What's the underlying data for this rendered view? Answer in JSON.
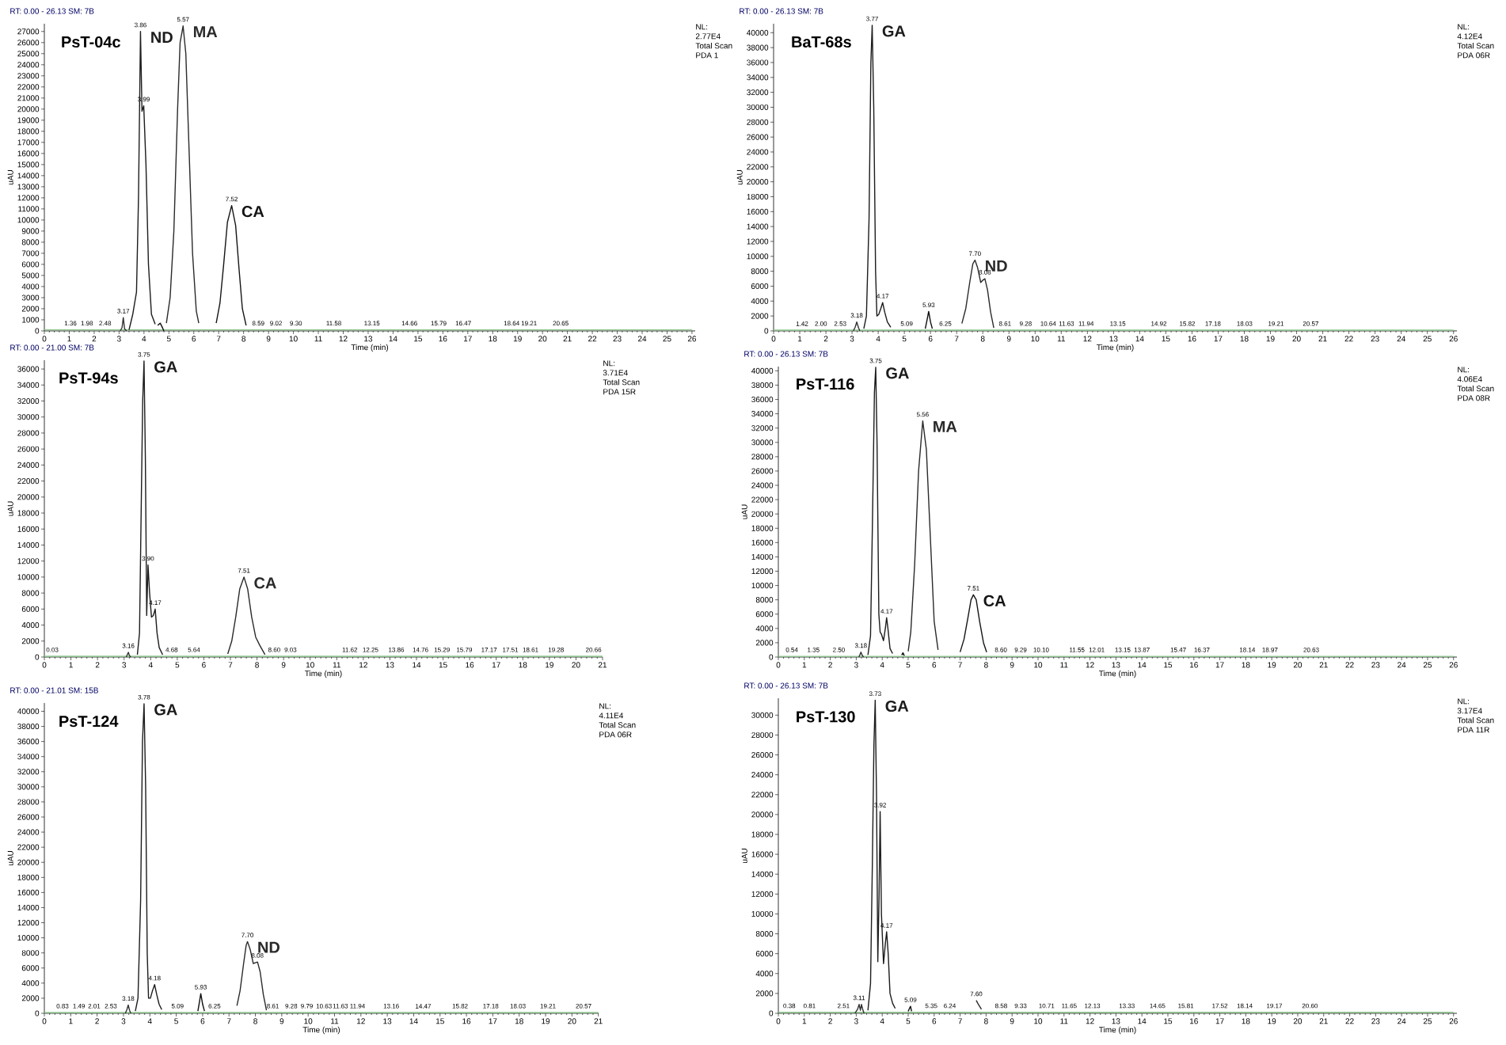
{
  "chart_data": [
    {
      "type": "line",
      "title": "PsT-04c",
      "subtitle": "RT: 0.00 - 26.13 SM: 7B",
      "xlabel": "Time (min)",
      "ylabel": "uAU",
      "xlim": [
        0,
        26.13
      ],
      "ylim": [
        0,
        27700
      ],
      "xticks": [
        0,
        1,
        2,
        3,
        4,
        5,
        6,
        7,
        8,
        9,
        10,
        11,
        12,
        13,
        14,
        15,
        16,
        17,
        18,
        19,
        20,
        21,
        22,
        23,
        24,
        25,
        26
      ],
      "yticks": [
        0,
        1000,
        2000,
        3000,
        4000,
        5000,
        6000,
        7000,
        8000,
        9000,
        10000,
        11000,
        12000,
        13000,
        14000,
        15000,
        16000,
        17000,
        18000,
        19000,
        20000,
        21000,
        22000,
        23000,
        24000,
        25000,
        26000,
        27000
      ],
      "series": [
        {
          "color": "#8cc78c",
          "x": [
            0,
            26
          ],
          "values": [
            100,
            100
          ]
        },
        {
          "color": "#333333",
          "x": [
            3.05,
            3.12,
            3.17,
            3.22,
            3.3
          ],
          "values": [
            0,
            300,
            1200,
            200,
            0
          ]
        },
        {
          "name": "ND",
          "color": "#1c1c1c",
          "x": [
            3.4,
            3.55,
            3.7,
            3.78,
            3.86,
            3.92,
            3.99,
            4.08,
            4.18,
            4.3,
            4.45
          ],
          "values": [
            100,
            1500,
            3500,
            12000,
            27000,
            19800,
            20300,
            15000,
            6000,
            1500,
            600
          ]
        },
        {
          "color": "#0e0e0e",
          "x": [
            4.55,
            4.65,
            4.72,
            4.8
          ],
          "values": [
            500,
            700,
            400,
            0
          ]
        },
        {
          "name": "MA",
          "color": "#2a2a2a",
          "x": [
            4.9,
            5.05,
            5.2,
            5.35,
            5.45,
            5.57,
            5.68,
            5.8,
            5.95,
            6.1,
            6.2
          ],
          "values": [
            700,
            3000,
            9000,
            20000,
            26000,
            27500,
            25000,
            17000,
            7000,
            1800,
            700
          ]
        },
        {
          "name": "CA",
          "color": "#151515",
          "x": [
            6.9,
            7.05,
            7.2,
            7.35,
            7.52,
            7.68,
            7.82,
            7.95,
            8.1
          ],
          "values": [
            700,
            2500,
            6000,
            9800,
            11300,
            9500,
            5500,
            2000,
            500
          ]
        }
      ],
      "annotations": [
        "NL:",
        "2.77E4",
        "Total Scan",
        "PDA 1",
        {
          "text": "1.36",
          "x": 1.05,
          "y": 100
        },
        {
          "text": "1.98",
          "x": 1.71,
          "y": 100
        },
        {
          "text": "2.48",
          "x": 2.44,
          "y": 100
        },
        {
          "text": "3.17",
          "x": 3.17,
          "y": 1200
        },
        {
          "text": "3.86",
          "x": 3.86,
          "y": 27000
        },
        {
          "text": "3.99",
          "x": 3.99,
          "y": 20300
        },
        {
          "text": "5.57",
          "x": 5.57,
          "y": 27500
        },
        {
          "text": "7.52",
          "x": 7.52,
          "y": 11300
        },
        {
          "text": "8.59",
          "x": 8.59,
          "y": 100
        },
        {
          "text": "9.02",
          "x": 9.3,
          "y": 100
        },
        {
          "text": "9.30",
          "x": 10.1,
          "y": 100
        },
        {
          "text": "11.58",
          "x": 11.62,
          "y": 100
        },
        {
          "text": "13.15",
          "x": 13.15,
          "y": 100
        },
        {
          "text": "14.66",
          "x": 14.66,
          "y": 100
        },
        {
          "text": "15.79",
          "x": 15.83,
          "y": 100
        },
        {
          "text": "16.47",
          "x": 16.82,
          "y": 100
        },
        {
          "text": "18.64",
          "x": 18.76,
          "y": 100
        },
        {
          "text": "19.21",
          "x": 19.46,
          "y": 100
        },
        {
          "text": "20.65",
          "x": 20.73,
          "y": 100
        }
      ]
    },
    {
      "type": "line",
      "title": "BaT-68s",
      "subtitle": "RT: 0.00 - 26.13 SM: 7B",
      "xlabel": "Time (min)",
      "ylabel": "uAU",
      "xlim": [
        0,
        26.13
      ],
      "ylim": [
        0,
        41200
      ],
      "xticks": [
        0,
        1,
        2,
        3,
        4,
        5,
        6,
        7,
        8,
        9,
        10,
        11,
        12,
        13,
        14,
        15,
        16,
        17,
        18,
        19,
        20,
        21,
        22,
        23,
        24,
        25,
        26
      ],
      "yticks": [
        0,
        2000,
        4000,
        6000,
        8000,
        10000,
        12000,
        14000,
        16000,
        18000,
        20000,
        22000,
        24000,
        26000,
        28000,
        30000,
        32000,
        34000,
        36000,
        38000,
        40000
      ],
      "series": [
        {
          "color": "#8cc78c",
          "x": [
            0,
            26
          ],
          "values": [
            100,
            100
          ]
        },
        {
          "color": "#333333",
          "x": [
            3.05,
            3.12,
            3.18,
            3.25,
            3.3
          ],
          "values": [
            0,
            500,
            1200,
            400,
            0
          ]
        },
        {
          "name": "GA",
          "color": "#1c1c1c",
          "x": [
            3.45,
            3.55,
            3.65,
            3.72,
            3.77,
            3.83,
            3.9,
            3.95,
            4.02,
            4.1,
            4.17,
            4.25,
            4.35,
            4.48
          ],
          "values": [
            300,
            2000,
            15000,
            36000,
            41000,
            30000,
            8000,
            2000,
            2200,
            3000,
            3800,
            2500,
            1200,
            500
          ]
        },
        {
          "color": "#0e0e0e",
          "x": [
            5.8,
            5.87,
            5.93,
            6.0,
            6.07
          ],
          "values": [
            300,
            1500,
            2600,
            1200,
            300
          ]
        },
        {
          "name": "ND",
          "color": "#2a2a2a",
          "x": [
            7.2,
            7.35,
            7.5,
            7.62,
            7.7,
            7.8,
            7.92,
            8.0,
            8.08,
            8.18,
            8.3,
            8.42
          ],
          "values": [
            1000,
            3000,
            6500,
            9000,
            9500,
            8500,
            6500,
            6800,
            7000,
            5500,
            2500,
            400
          ]
        }
      ],
      "annotations": [
        "NL:",
        "4.12E4",
        "Total Scan",
        "PDA 06R",
        {
          "text": "1.42",
          "x": 1.09,
          "y": 100
        },
        {
          "text": "2.00",
          "x": 1.81,
          "y": 100
        },
        {
          "text": "2.53",
          "x": 2.55,
          "y": 100
        },
        {
          "text": "3.18",
          "x": 3.18,
          "y": 1200
        },
        {
          "text": "3.77",
          "x": 3.77,
          "y": 41000
        },
        {
          "text": "4.17",
          "x": 4.17,
          "y": 3800
        },
        {
          "text": "5.09",
          "x": 5.09,
          "y": 100
        },
        {
          "text": "5.93",
          "x": 5.93,
          "y": 2600
        },
        {
          "text": "6.25",
          "x": 6.57,
          "y": 100
        },
        {
          "text": "7.70",
          "x": 7.7,
          "y": 9500
        },
        {
          "text": "8.08",
          "x": 8.08,
          "y": 7000
        },
        {
          "text": "8.61",
          "x": 8.85,
          "y": 100
        },
        {
          "text": "9.28",
          "x": 9.64,
          "y": 100
        },
        {
          "text": "10.64",
          "x": 10.5,
          "y": 100
        },
        {
          "text": "11.63",
          "x": 11.2,
          "y": 100
        },
        {
          "text": "11.94",
          "x": 11.95,
          "y": 100
        },
        {
          "text": "13.15",
          "x": 13.16,
          "y": 100
        },
        {
          "text": "14.92",
          "x": 14.73,
          "y": 100
        },
        {
          "text": "15.82",
          "x": 15.82,
          "y": 100
        },
        {
          "text": "17.18",
          "x": 16.8,
          "y": 100
        },
        {
          "text": "18.03",
          "x": 18.01,
          "y": 100
        },
        {
          "text": "19.21",
          "x": 19.21,
          "y": 100
        },
        {
          "text": "20.57",
          "x": 20.54,
          "y": 100
        }
      ]
    },
    {
      "type": "line",
      "title": "PsT-94s",
      "subtitle": "RT: 0.00 - 21.00 SM: 7B",
      "xlabel": "Time (min)",
      "ylabel": "uAU",
      "xlim": [
        0,
        21
      ],
      "ylim": [
        0,
        37100
      ],
      "xticks": [
        0,
        1,
        2,
        3,
        4,
        5,
        6,
        7,
        8,
        9,
        10,
        11,
        12,
        13,
        14,
        15,
        16,
        17,
        18,
        19,
        20,
        21
      ],
      "yticks": [
        0,
        2000,
        4000,
        6000,
        8000,
        10000,
        12000,
        14000,
        16000,
        18000,
        20000,
        22000,
        24000,
        26000,
        28000,
        30000,
        32000,
        34000,
        36000
      ],
      "series": [
        {
          "color": "#8cc78c",
          "x": [
            0,
            21
          ],
          "values": [
            100,
            100
          ]
        },
        {
          "color": "#333333",
          "x": [
            3.08,
            3.12,
            3.16,
            3.2,
            3.25
          ],
          "values": [
            0,
            300,
            600,
            200,
            0
          ]
        },
        {
          "name": "GA",
          "color": "#1c1c1c",
          "x": [
            3.5,
            3.58,
            3.65,
            3.7,
            3.75,
            3.8,
            3.85,
            3.9,
            3.96,
            4.03,
            4.1,
            4.17,
            4.24,
            4.32,
            4.45
          ],
          "values": [
            300,
            3000,
            20000,
            32000,
            37000,
            25000,
            5200,
            11500,
            8000,
            5000,
            5200,
            6000,
            3000,
            1200,
            300
          ]
        },
        {
          "name": "CA",
          "color": "#2a2a2a",
          "x": [
            6.9,
            7.05,
            7.2,
            7.35,
            7.51,
            7.65,
            7.8,
            7.95,
            8.1,
            8.3
          ],
          "values": [
            400,
            2000,
            5000,
            8500,
            10000,
            8500,
            5000,
            2500,
            1500,
            300
          ]
        }
      ],
      "annotations": [
        "NL:",
        "3.71E4",
        "Total Scan",
        "PDA 15R",
        {
          "text": "0.03",
          "x": 0.3,
          "y": 100
        },
        {
          "text": "3.16",
          "x": 3.16,
          "y": 600
        },
        {
          "text": "3.75",
          "x": 3.75,
          "y": 37000
        },
        {
          "text": "3.90",
          "x": 3.9,
          "y": 11500
        },
        {
          "text": "4.17",
          "x": 4.17,
          "y": 6000
        },
        {
          "text": "4.68",
          "x": 4.79,
          "y": 100
        },
        {
          "text": "5.64",
          "x": 5.63,
          "y": 100
        },
        {
          "text": "7.51",
          "x": 7.51,
          "y": 10000
        },
        {
          "text": "8.60",
          "x": 8.65,
          "y": 100
        },
        {
          "text": "9.03",
          "x": 9.26,
          "y": 100
        },
        {
          "text": "11.62",
          "x": 11.49,
          "y": 100
        },
        {
          "text": "12.25",
          "x": 12.27,
          "y": 100
        },
        {
          "text": "13.86",
          "x": 13.24,
          "y": 100
        },
        {
          "text": "14.76",
          "x": 14.15,
          "y": 100
        },
        {
          "text": "15.29",
          "x": 14.96,
          "y": 100
        },
        {
          "text": "15.79",
          "x": 15.8,
          "y": 100
        },
        {
          "text": "17.17",
          "x": 16.73,
          "y": 100
        },
        {
          "text": "17.51",
          "x": 17.53,
          "y": 100
        },
        {
          "text": "18.61",
          "x": 18.29,
          "y": 100
        },
        {
          "text": "19.28",
          "x": 19.25,
          "y": 100
        },
        {
          "text": "20.66",
          "x": 20.66,
          "y": 100
        }
      ]
    },
    {
      "type": "line",
      "title": "PsT-116",
      "subtitle": "RT: 0.00 - 26.13 SM: 7B",
      "xlabel": "Time (min)",
      "ylabel": "uAU",
      "xlim": [
        0,
        26.13
      ],
      "ylim": [
        0,
        40600
      ],
      "xticks": [
        0,
        1,
        2,
        3,
        4,
        5,
        6,
        7,
        8,
        9,
        10,
        11,
        12,
        13,
        14,
        15,
        16,
        17,
        18,
        19,
        20,
        21,
        22,
        23,
        24,
        25,
        26
      ],
      "yticks": [
        0,
        2000,
        4000,
        6000,
        8000,
        10000,
        12000,
        14000,
        16000,
        18000,
        20000,
        22000,
        24000,
        26000,
        28000,
        30000,
        32000,
        34000,
        36000,
        38000,
        40000
      ],
      "series": [
        {
          "color": "#8cc78c",
          "x": [
            0,
            26
          ],
          "values": [
            100,
            100
          ]
        },
        {
          "color": "#333333",
          "x": [
            3.1,
            3.15,
            3.18,
            3.22,
            3.28
          ],
          "values": [
            0,
            400,
            700,
            300,
            0
          ]
        },
        {
          "name": "GA",
          "color": "#1c1c1c",
          "x": [
            3.45,
            3.55,
            3.62,
            3.7,
            3.75,
            3.8,
            3.87,
            3.92,
            3.97,
            4.05,
            4.12,
            4.17,
            4.22,
            4.3,
            4.4
          ],
          "values": [
            300,
            3000,
            18000,
            37000,
            40500,
            30000,
            6000,
            3500,
            3200,
            2300,
            4000,
            5500,
            4000,
            1200,
            500
          ]
        },
        {
          "color": "#0e0e0e",
          "x": [
            4.75,
            4.8,
            4.85
          ],
          "values": [
            300,
            600,
            200
          ]
        },
        {
          "name": "MA",
          "color": "#2a2a2a",
          "x": [
            5.0,
            5.1,
            5.25,
            5.4,
            5.56,
            5.7,
            5.85,
            6.0,
            6.15
          ],
          "values": [
            800,
            3500,
            13000,
            26000,
            33000,
            29000,
            17000,
            5000,
            1000
          ]
        },
        {
          "name": "CA",
          "color": "#151515",
          "x": [
            7.0,
            7.15,
            7.3,
            7.42,
            7.51,
            7.62,
            7.75,
            7.9,
            8.02
          ],
          "values": [
            700,
            2500,
            5500,
            8000,
            8700,
            8000,
            5000,
            2000,
            700
          ]
        }
      ],
      "annotations": [
        "NL:",
        "4.06E4",
        "Total Scan",
        "PDA 08R",
        {
          "text": "0.54",
          "x": 0.52,
          "y": 100
        },
        {
          "text": "1.35",
          "x": 1.35,
          "y": 100
        },
        {
          "text": "2.50",
          "x": 2.33,
          "y": 100
        },
        {
          "text": "3.18",
          "x": 3.18,
          "y": 700
        },
        {
          "text": "3.75",
          "x": 3.75,
          "y": 40500
        },
        {
          "text": "4.17",
          "x": 4.17,
          "y": 5500
        },
        {
          "text": "5.56",
          "x": 5.56,
          "y": 33000
        },
        {
          "text": "7.51",
          "x": 7.51,
          "y": 8700
        },
        {
          "text": "8.60",
          "x": 8.57,
          "y": 100
        },
        {
          "text": "9.29",
          "x": 9.33,
          "y": 100
        },
        {
          "text": "10.10",
          "x": 10.12,
          "y": 100
        },
        {
          "text": "11.55",
          "x": 11.5,
          "y": 100
        },
        {
          "text": "12.01",
          "x": 12.26,
          "y": 100
        },
        {
          "text": "13.15",
          "x": 13.26,
          "y": 100
        },
        {
          "text": "13.87",
          "x": 14.0,
          "y": 100
        },
        {
          "text": "15.47",
          "x": 15.4,
          "y": 100
        },
        {
          "text": "16.37",
          "x": 16.31,
          "y": 100
        },
        {
          "text": "18.14",
          "x": 18.06,
          "y": 100
        },
        {
          "text": "18.97",
          "x": 18.93,
          "y": 100
        },
        {
          "text": "20.63",
          "x": 20.52,
          "y": 100
        }
      ]
    },
    {
      "type": "line",
      "title": "PsT-124",
      "subtitle": "RT: 0.00 - 21.01 SM: 15B",
      "xlabel": "Time (min)",
      "ylabel": "uAU",
      "xlim": [
        0,
        21.01
      ],
      "ylim": [
        0,
        41100
      ],
      "xticks": [
        0,
        1,
        2,
        3,
        4,
        5,
        6,
        7,
        8,
        9,
        10,
        11,
        12,
        13,
        14,
        15,
        16,
        17,
        18,
        19,
        20,
        21
      ],
      "yticks": [
        0,
        2000,
        4000,
        6000,
        8000,
        10000,
        12000,
        14000,
        16000,
        18000,
        20000,
        22000,
        24000,
        26000,
        28000,
        30000,
        32000,
        34000,
        36000,
        38000,
        40000
      ],
      "series": [
        {
          "color": "#8cc78c",
          "x": [
            0,
            21
          ],
          "values": [
            100,
            100
          ]
        },
        {
          "color": "#333333",
          "x": [
            3.07,
            3.13,
            3.18,
            3.23,
            3.28
          ],
          "values": [
            0,
            500,
            1100,
            400,
            0
          ]
        },
        {
          "name": "GA",
          "color": "#1c1c1c",
          "x": [
            3.45,
            3.55,
            3.65,
            3.72,
            3.78,
            3.84,
            3.9,
            3.95,
            4.02,
            4.1,
            4.18,
            4.26,
            4.35,
            4.45
          ],
          "values": [
            300,
            2000,
            15000,
            36000,
            41000,
            30000,
            8000,
            2000,
            2000,
            3000,
            3800,
            2500,
            1200,
            500
          ]
        },
        {
          "color": "#0e0e0e",
          "x": [
            5.82,
            5.88,
            5.93,
            6.0,
            6.07
          ],
          "values": [
            300,
            1500,
            2600,
            1200,
            300
          ]
        },
        {
          "name": "ND",
          "color": "#2a2a2a",
          "x": [
            7.3,
            7.42,
            7.55,
            7.65,
            7.7,
            7.8,
            7.92,
            8.0,
            8.08,
            8.18,
            8.3,
            8.42
          ],
          "values": [
            1000,
            3000,
            6500,
            9000,
            9500,
            8500,
            6600,
            6700,
            6800,
            5500,
            2500,
            400
          ]
        }
      ],
      "annotations": [
        "NL:",
        "4.11E4",
        "Total Scan",
        "PDA 06R",
        {
          "text": "0.83",
          "x": 0.69,
          "y": 100
        },
        {
          "text": "1.49",
          "x": 1.31,
          "y": 100
        },
        {
          "text": "2.01",
          "x": 1.89,
          "y": 100
        },
        {
          "text": "2.53",
          "x": 2.52,
          "y": 100
        },
        {
          "text": "3.18",
          "x": 3.18,
          "y": 1100
        },
        {
          "text": "3.78",
          "x": 3.78,
          "y": 41000
        },
        {
          "text": "4.18",
          "x": 4.18,
          "y": 3800
        },
        {
          "text": "5.09",
          "x": 5.05,
          "y": 100
        },
        {
          "text": "5.93",
          "x": 5.93,
          "y": 2600
        },
        {
          "text": "6.25",
          "x": 6.45,
          "y": 100
        },
        {
          "text": "7.70",
          "x": 7.7,
          "y": 9500
        },
        {
          "text": "8.08",
          "x": 8.08,
          "y": 6800
        },
        {
          "text": "8.61",
          "x": 8.66,
          "y": 100
        },
        {
          "text": "9.28",
          "x": 9.36,
          "y": 100
        },
        {
          "text": "9.79",
          "x": 9.95,
          "y": 100
        },
        {
          "text": "10.63",
          "x": 10.6,
          "y": 100
        },
        {
          "text": "11.63",
          "x": 11.22,
          "y": 100
        },
        {
          "text": "11.94",
          "x": 11.87,
          "y": 100
        },
        {
          "text": "13.16",
          "x": 13.15,
          "y": 100
        },
        {
          "text": "14.47",
          "x": 14.36,
          "y": 100
        },
        {
          "text": "15.82",
          "x": 15.76,
          "y": 100
        },
        {
          "text": "17.18",
          "x": 16.92,
          "y": 100
        },
        {
          "text": "18.03",
          "x": 17.95,
          "y": 100
        },
        {
          "text": "19.21",
          "x": 19.09,
          "y": 100
        },
        {
          "text": "20.57",
          "x": 20.44,
          "y": 100
        }
      ]
    },
    {
      "type": "line",
      "title": "PsT-130",
      "subtitle": "RT: 0.00 - 26.13 SM: 7B",
      "xlabel": "Time (min)",
      "ylabel": "uAU",
      "xlim": [
        0,
        26.13
      ],
      "ylim": [
        0,
        31700
      ],
      "xticks": [
        0,
        1,
        2,
        3,
        4,
        5,
        6,
        7,
        8,
        9,
        10,
        11,
        12,
        13,
        14,
        15,
        16,
        17,
        18,
        19,
        20,
        21,
        22,
        23,
        24,
        25,
        26
      ],
      "yticks": [
        0,
        2000,
        4000,
        6000,
        8000,
        10000,
        12000,
        14000,
        16000,
        18000,
        20000,
        22000,
        24000,
        26000,
        28000,
        30000
      ],
      "series": [
        {
          "color": "#8cc78c",
          "x": [
            0,
            26
          ],
          "values": [
            100,
            100
          ]
        },
        {
          "color": "#333333",
          "x": [
            2.95,
            3.05,
            3.11,
            3.16,
            3.2,
            3.25,
            3.3
          ],
          "values": [
            0,
            400,
            900,
            300,
            900,
            400,
            0
          ]
        },
        {
          "name": "GA",
          "color": "#1c1c1c",
          "x": [
            3.45,
            3.55,
            3.62,
            3.68,
            3.73,
            3.78,
            3.83,
            3.88,
            3.92,
            3.97,
            4.05,
            4.12,
            4.17,
            4.23,
            4.3,
            4.4,
            4.5
          ],
          "values": [
            300,
            3000,
            15000,
            27000,
            31500,
            22000,
            5200,
            12000,
            20300,
            10000,
            5000,
            7000,
            8200,
            6000,
            2000,
            1000,
            500
          ]
        },
        {
          "color": "#0e0e0e",
          "x": [
            5.0,
            5.05,
            5.09,
            5.13
          ],
          "values": [
            200,
            500,
            700,
            200
          ]
        },
        {
          "color": "#2a2a2a",
          "x": [
            7.62,
            7.68,
            7.75,
            7.82
          ],
          "values": [
            1300,
            1000,
            700,
            400
          ]
        }
      ],
      "annotations": [
        "NL:",
        "3.17E4",
        "Total Scan",
        "PDA 11R",
        {
          "text": "0.38",
          "x": 0.42,
          "y": 100
        },
        {
          "text": "0.81",
          "x": 1.2,
          "y": 100
        },
        {
          "text": "2.51",
          "x": 2.51,
          "y": 100
        },
        {
          "text": "3.11",
          "x": 3.11,
          "y": 900
        },
        {
          "text": "3.73",
          "x": 3.73,
          "y": 31500
        },
        {
          "text": "3.92",
          "x": 3.92,
          "y": 20300
        },
        {
          "text": "4.17",
          "x": 4.17,
          "y": 8200
        },
        {
          "text": "5.09",
          "x": 5.09,
          "y": 700
        },
        {
          "text": "5.35",
          "x": 5.89,
          "y": 100
        },
        {
          "text": "6.24",
          "x": 6.6,
          "y": 100
        },
        {
          "text": "7.60",
          "x": 7.62,
          "y": 1300
        },
        {
          "text": "8.58",
          "x": 8.58,
          "y": 100
        },
        {
          "text": "9.33",
          "x": 9.33,
          "y": 100
        },
        {
          "text": "10.71",
          "x": 10.33,
          "y": 100
        },
        {
          "text": "11.65",
          "x": 11.2,
          "y": 100
        },
        {
          "text": "12.13",
          "x": 12.09,
          "y": 100
        },
        {
          "text": "13.33",
          "x": 13.42,
          "y": 100
        },
        {
          "text": "14.65",
          "x": 14.6,
          "y": 100
        },
        {
          "text": "15.81",
          "x": 15.69,
          "y": 100
        },
        {
          "text": "17.52",
          "x": 17.0,
          "y": 100
        },
        {
          "text": "18.14",
          "x": 17.96,
          "y": 100
        },
        {
          "text": "19.17",
          "x": 19.1,
          "y": 100
        },
        {
          "text": "20.60",
          "x": 20.47,
          "y": 100
        }
      ]
    }
  ]
}
